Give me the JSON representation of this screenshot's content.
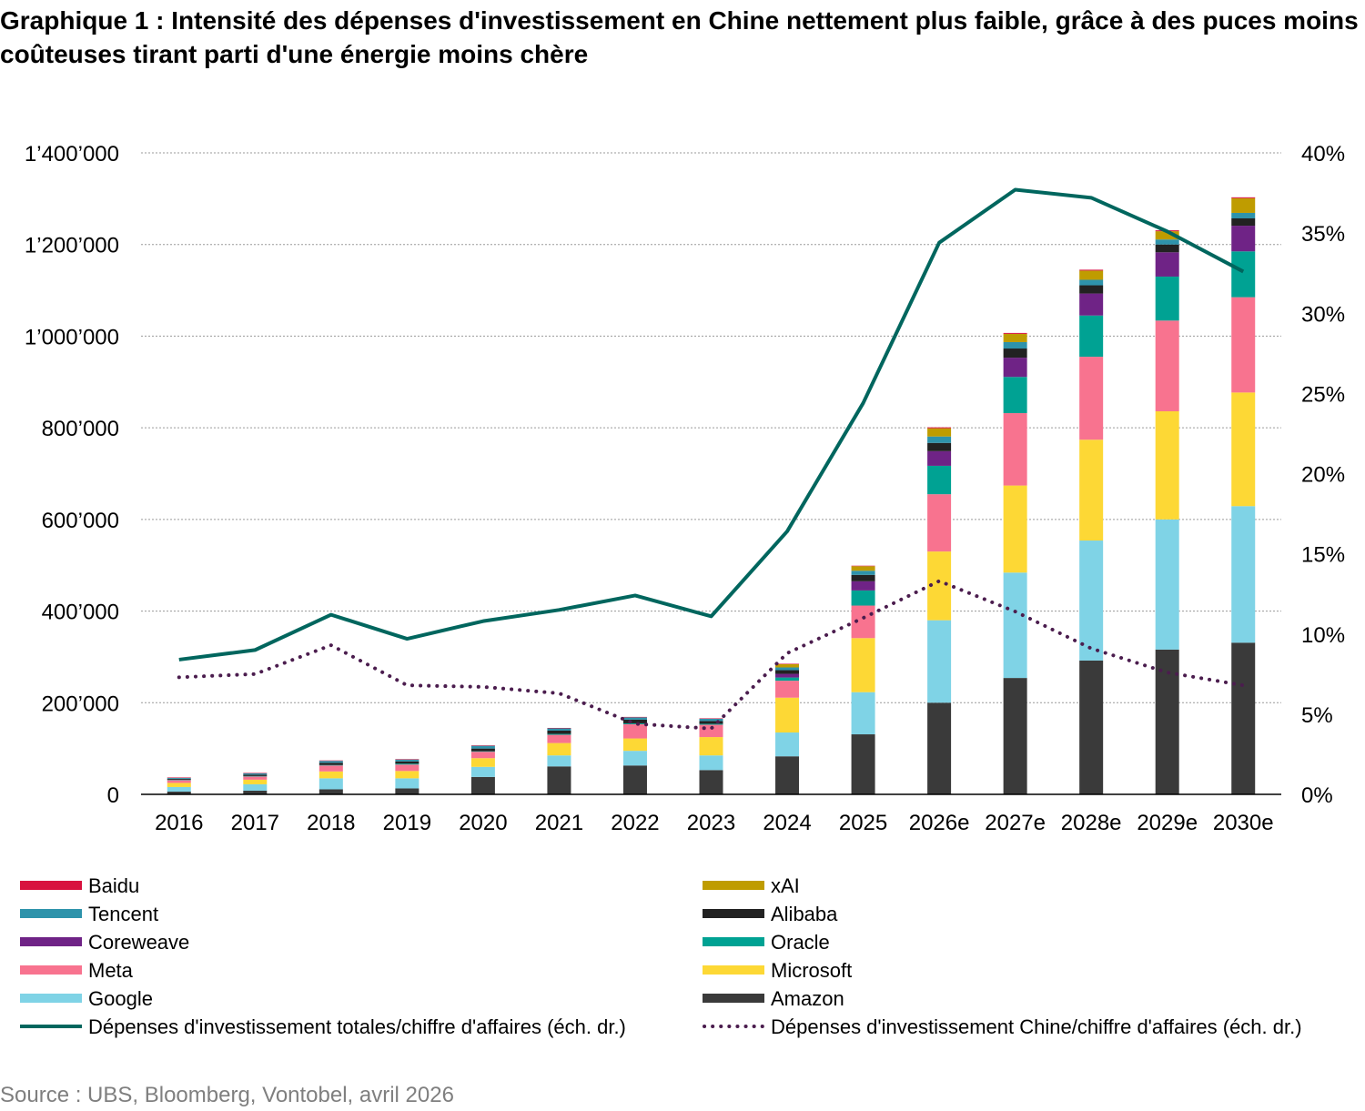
{
  "title": "Graphique 1 : Intensité des dépenses d'investissement en Chine nettement plus faible, grâce à des puces moins coûteuses tirant parti d'une énergie moins chère",
  "source": "Source : UBS, Bloomberg, Vontobel, avril 2026",
  "chart_data": {
    "type": "bar",
    "stacked": true,
    "categories": [
      "2016",
      "2017",
      "2018",
      "2019",
      "2020",
      "2021",
      "2022",
      "2023",
      "2024",
      "2025",
      "2026e",
      "2027e",
      "2028e",
      "2029e",
      "2030e"
    ],
    "y_left": {
      "ylim": [
        0,
        1400000
      ],
      "ticks": [
        0,
        200000,
        400000,
        600000,
        800000,
        1000000,
        1200000,
        1400000
      ],
      "tick_labels": [
        "0",
        "200’000",
        "400’000",
        "600’000",
        "800’000",
        "1’000’000",
        "1’200’000",
        "1’400’000"
      ]
    },
    "y_right": {
      "ylim": [
        0,
        40
      ],
      "ticks": [
        0,
        5,
        10,
        15,
        20,
        25,
        30,
        35,
        40
      ],
      "tick_labels": [
        "0%",
        "5%",
        "10%",
        "15%",
        "20%",
        "25%",
        "30%",
        "35%",
        "40%"
      ]
    },
    "grid": true,
    "legend_position": "bottom",
    "series": [
      {
        "name": "Amazon",
        "color": "#3a3a3a",
        "values": [
          6000,
          8000,
          11000,
          13000,
          38000,
          61000,
          63000,
          53000,
          83000,
          131000,
          200000,
          254000,
          292000,
          316000,
          331000
        ]
      },
      {
        "name": "Google",
        "color": "#7fd3e6",
        "values": [
          10000,
          14000,
          24000,
          22000,
          22000,
          24000,
          32000,
          32000,
          52000,
          92000,
          180000,
          230000,
          262000,
          284000,
          298000
        ]
      },
      {
        "name": "Microsoft",
        "color": "#fdd835",
        "values": [
          9000,
          10000,
          15000,
          16000,
          19000,
          27000,
          27000,
          40000,
          76000,
          118000,
          150000,
          190000,
          220000,
          236000,
          248000
        ]
      },
      {
        "name": "Meta",
        "color": "#f8738f",
        "values": [
          6000,
          7000,
          13000,
          14000,
          14000,
          18000,
          31000,
          27000,
          37000,
          71000,
          125000,
          158000,
          181000,
          198000,
          208000
        ]
      },
      {
        "name": "Oracle",
        "color": "#00a293",
        "values": [
          1000,
          1000,
          1000,
          2000,
          1000,
          2000,
          2000,
          2000,
          7000,
          33000,
          62000,
          79000,
          90000,
          96000,
          100000
        ]
      },
      {
        "name": "Coreweave",
        "color": "#6f2386",
        "values": [
          0,
          0,
          0,
          0,
          0,
          0,
          0,
          0,
          8000,
          20000,
          32000,
          42000,
          48000,
          53000,
          56000
        ]
      },
      {
        "name": "Alibaba",
        "color": "#222222",
        "values": [
          2000,
          3000,
          5000,
          5000,
          6000,
          7000,
          8000,
          6000,
          8000,
          14000,
          18000,
          20000,
          18000,
          17000,
          16000
        ]
      },
      {
        "name": "Tencent",
        "color": "#2e93ab",
        "values": [
          2000,
          3000,
          4000,
          4000,
          6000,
          5000,
          5000,
          5000,
          6000,
          9000,
          14000,
          14000,
          12000,
          11000,
          12000
        ]
      },
      {
        "name": "xAI",
        "color": "#bf9c00",
        "values": [
          0,
          0,
          0,
          0,
          0,
          0,
          0,
          0,
          7000,
          10000,
          18000,
          18000,
          20000,
          18000,
          32000
        ]
      },
      {
        "name": "Baidu",
        "color": "#d8123e",
        "values": [
          1000,
          1000,
          1000,
          1000,
          1000,
          1000,
          1000,
          1000,
          1000,
          1000,
          2000,
          2000,
          2000,
          2000,
          2000
        ]
      }
    ],
    "lines": [
      {
        "name": "Dépenses d'investissement totales/chiffre d'affaires (éch. dr.)",
        "color": "#00665e",
        "style": "solid",
        "axis": "right",
        "values": [
          8.4,
          9.0,
          11.2,
          9.7,
          10.8,
          11.5,
          12.4,
          11.1,
          16.4,
          24.4,
          34.4,
          37.7,
          37.2,
          35.1,
          32.6
        ]
      },
      {
        "name": "Dépenses d'investissement Chine/chiffre d'affaires (éch. dr.)",
        "color": "#4b1d4e",
        "style": "dotted",
        "axis": "right",
        "values": [
          7.3,
          7.5,
          9.3,
          6.8,
          6.7,
          6.3,
          4.4,
          4.1,
          8.8,
          11.0,
          13.3,
          11.4,
          9.1,
          7.6,
          6.8
        ]
      }
    ]
  },
  "legend": {
    "left": [
      {
        "label": "Baidu",
        "color": "#d8123e",
        "kind": "bar"
      },
      {
        "label": "Tencent",
        "color": "#2e93ab",
        "kind": "bar"
      },
      {
        "label": "Coreweave",
        "color": "#6f2386",
        "kind": "bar"
      },
      {
        "label": "Meta",
        "color": "#f8738f",
        "kind": "bar"
      },
      {
        "label": "Google",
        "color": "#7fd3e6",
        "kind": "bar"
      },
      {
        "label": "Dépenses d'investissement totales/chiffre d'affaires (éch. dr.)",
        "color": "#00665e",
        "kind": "solid"
      }
    ],
    "right": [
      {
        "label": "xAI",
        "color": "#bf9c00",
        "kind": "bar"
      },
      {
        "label": "Alibaba",
        "color": "#222222",
        "kind": "bar"
      },
      {
        "label": "Oracle",
        "color": "#00a293",
        "kind": "bar"
      },
      {
        "label": "Microsoft",
        "color": "#fdd835",
        "kind": "bar"
      },
      {
        "label": "Amazon",
        "color": "#3a3a3a",
        "kind": "bar"
      },
      {
        "label": "Dépenses d'investissement Chine/chiffre d'affaires (éch. dr.)",
        "color": "#4b1d4e",
        "kind": "dotted"
      }
    ]
  }
}
